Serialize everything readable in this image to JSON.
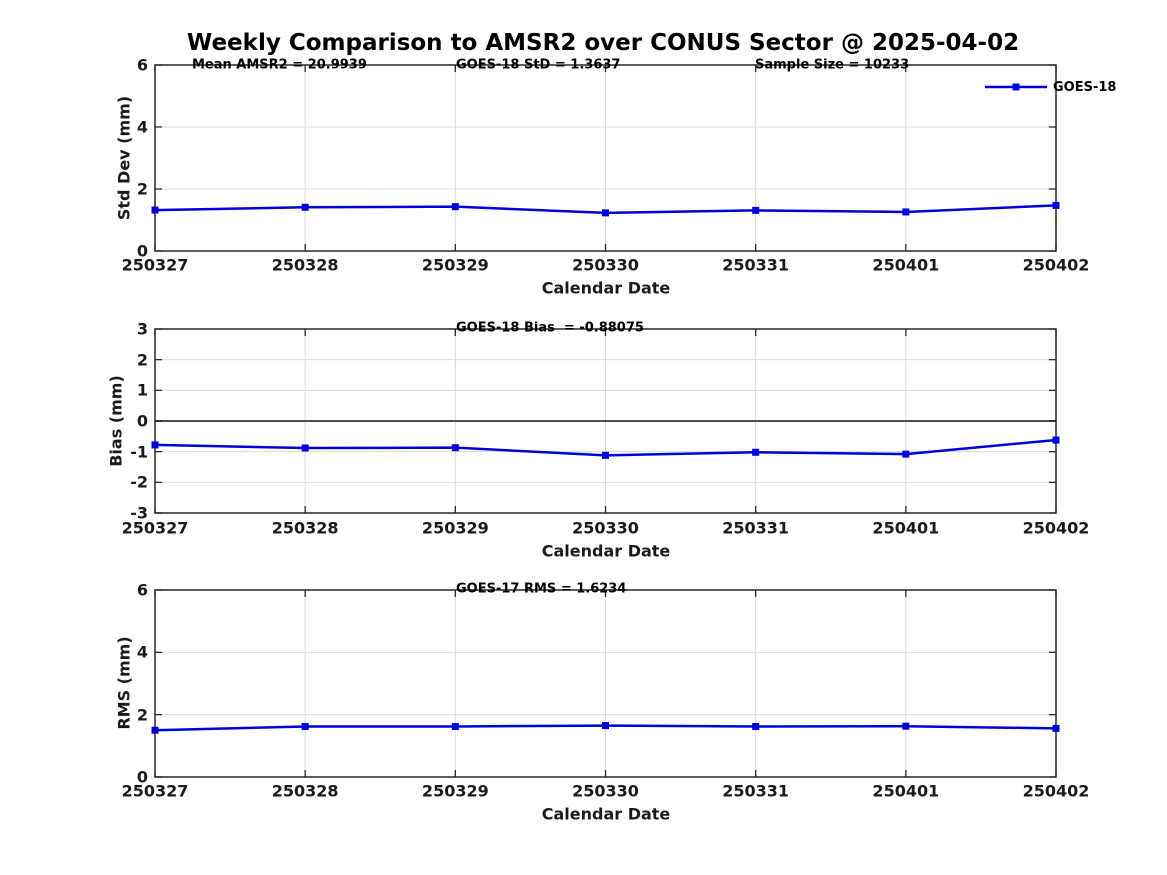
{
  "title": "Weekly Comparison to AMSR2 over CONUS Sector @ 2025-04-02",
  "legend": {
    "label": "GOES-18"
  },
  "colors": {
    "line": "#0000dd",
    "grid": "#d9d9d9",
    "zero_line": "#4d4d4d",
    "axis": "#262626"
  },
  "chart_data": [
    {
      "type": "line",
      "ylabel": "Std Dev (mm)",
      "xlabel": "Calendar Date",
      "categories": [
        "250327",
        "250328",
        "250329",
        "250330",
        "250331",
        "250401",
        "250402"
      ],
      "series": [
        {
          "name": "GOES-18",
          "values": [
            1.32,
            1.41,
            1.43,
            1.23,
            1.31,
            1.26,
            1.47
          ]
        }
      ],
      "ylim": [
        0,
        6
      ],
      "yticks": [
        0,
        2,
        4,
        6
      ],
      "grid": true,
      "annotations": [
        "Mean AMSR2 = 20.9939",
        "GOES-18 StD = 1.3637",
        "Sample Size = 10233"
      ],
      "legend_entries": [
        "GOES-18"
      ],
      "legend_position": "northeast"
    },
    {
      "type": "line",
      "ylabel": "Bias (mm)",
      "xlabel": "Calendar Date",
      "categories": [
        "250327",
        "250328",
        "250329",
        "250330",
        "250331",
        "250401",
        "250402"
      ],
      "series": [
        {
          "name": "GOES-18",
          "values": [
            -0.78,
            -0.88,
            -0.87,
            -1.12,
            -1.02,
            -1.08,
            -0.62
          ]
        }
      ],
      "ylim": [
        -3,
        3
      ],
      "yticks": [
        -3,
        -2,
        -1,
        0,
        1,
        2,
        3
      ],
      "grid": true,
      "zero_line": true,
      "annotations": [
        "GOES-18 Bias  = -0.88075"
      ]
    },
    {
      "type": "line",
      "ylabel": "RMS (mm)",
      "xlabel": "Calendar Date",
      "categories": [
        "250327",
        "250328",
        "250329",
        "250330",
        "250331",
        "250401",
        "250402"
      ],
      "series": [
        {
          "name": "GOES-18",
          "values": [
            1.5,
            1.62,
            1.62,
            1.65,
            1.62,
            1.63,
            1.56
          ]
        }
      ],
      "ylim": [
        0,
        6
      ],
      "yticks": [
        0,
        2,
        4,
        6
      ],
      "grid": true,
      "annotations": [
        "GOES-17 RMS = 1.6234"
      ]
    }
  ]
}
